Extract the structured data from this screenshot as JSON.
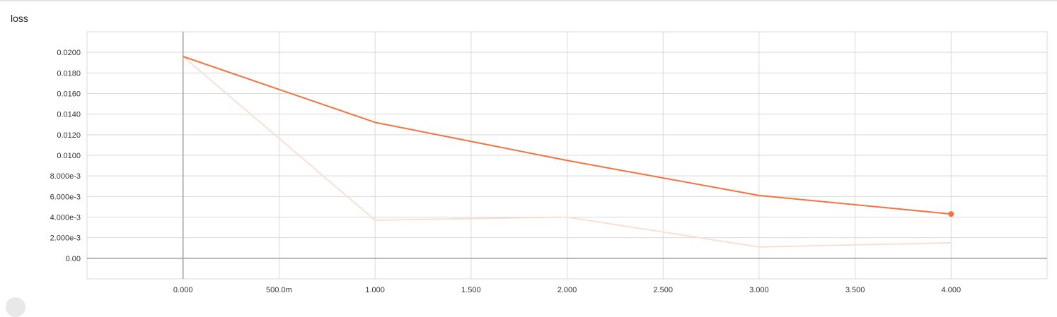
{
  "card": {
    "title": "loss"
  },
  "chart_data": {
    "type": "line",
    "title": "loss",
    "xlim": [
      -0.5,
      4.5
    ],
    "ylim": [
      -0.002,
      0.022
    ],
    "x_ticks": [
      {
        "value": 0,
        "label": "0.000"
      },
      {
        "value": 0.5,
        "label": "500.0m"
      },
      {
        "value": 1,
        "label": "1.000"
      },
      {
        "value": 1.5,
        "label": "1.500"
      },
      {
        "value": 2,
        "label": "2.000"
      },
      {
        "value": 2.5,
        "label": "2.500"
      },
      {
        "value": 3,
        "label": "3.000"
      },
      {
        "value": 3.5,
        "label": "3.500"
      },
      {
        "value": 4,
        "label": "4.000"
      }
    ],
    "y_ticks": [
      {
        "value": 0,
        "label": "0.00"
      },
      {
        "value": 0.002,
        "label": "2.000e-3"
      },
      {
        "value": 0.004,
        "label": "4.000e-3"
      },
      {
        "value": 0.006,
        "label": "6.000e-3"
      },
      {
        "value": 0.008,
        "label": "8.000e-3"
      },
      {
        "value": 0.01,
        "label": "0.0100"
      },
      {
        "value": 0.012,
        "label": "0.0120"
      },
      {
        "value": 0.014,
        "label": "0.0140"
      },
      {
        "value": 0.016,
        "label": "0.0160"
      },
      {
        "value": 0.018,
        "label": "0.0180"
      },
      {
        "value": 0.02,
        "label": "0.0200"
      }
    ],
    "grid": true,
    "series": [
      {
        "role": "raw",
        "color": "#fbdcd0",
        "x": [
          0,
          1,
          2,
          3,
          4
        ],
        "y": [
          0.0196,
          0.0037,
          0.004,
          0.0011,
          0.0015
        ]
      },
      {
        "role": "smoothed",
        "color": "#f4733f",
        "x": [
          0,
          1,
          2,
          3,
          4
        ],
        "y": [
          0.0196,
          0.0132,
          0.0095,
          0.0061,
          0.0043
        ],
        "last_point_marker": true
      }
    ]
  }
}
